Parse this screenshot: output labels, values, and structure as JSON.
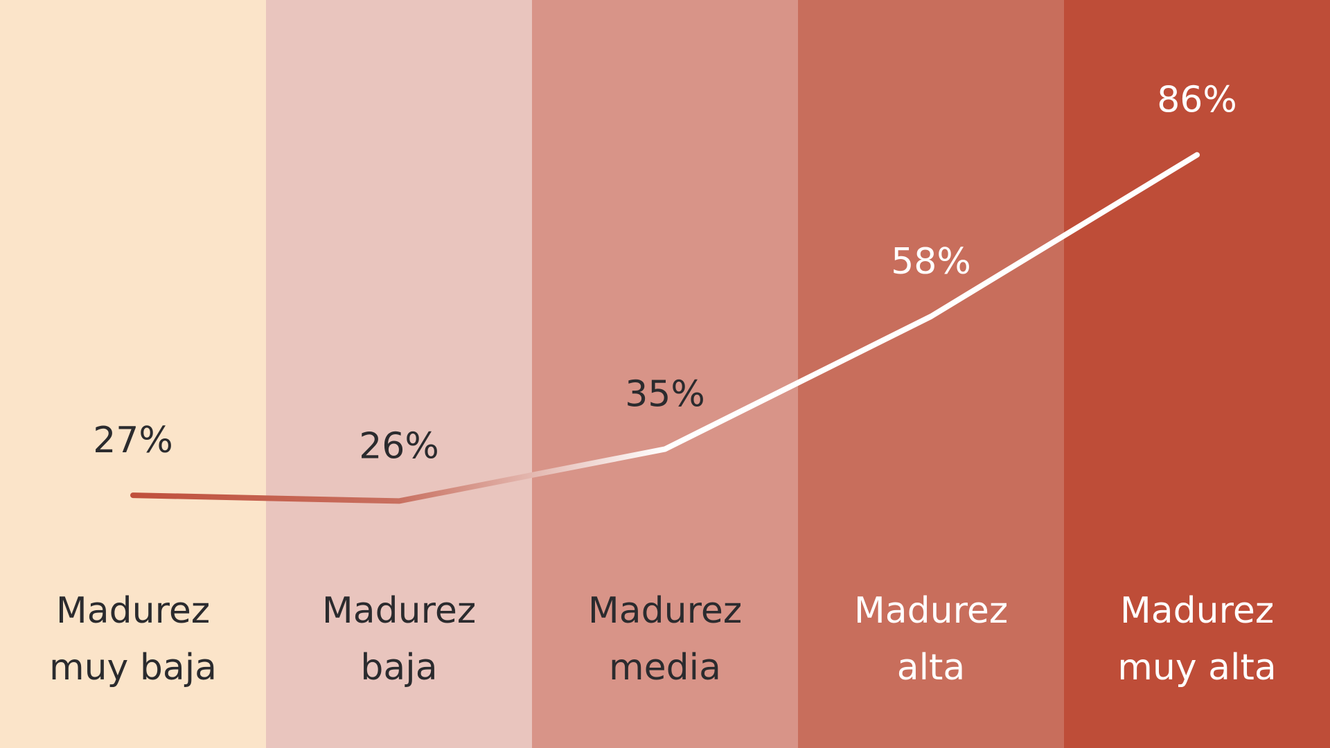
{
  "chart_data": {
    "type": "line",
    "categories": [
      "Madurez muy baja",
      "Madurez baja",
      "Madurez media",
      "Madurez alta",
      "Madurez muy alta"
    ],
    "values": [
      27,
      26,
      35,
      58,
      86
    ],
    "value_labels": [
      "27%",
      "26%",
      "35%",
      "58%",
      "86%"
    ],
    "ylim": [
      0,
      100
    ],
    "band_colors": [
      "#fbe4c9",
      "#e9c5be",
      "#d89488",
      "#c86e5c",
      "#be4d38"
    ],
    "label_colors": [
      "#2b2b2e",
      "#2b2b2e",
      "#2b2b2e",
      "#ffffff",
      "#ffffff"
    ]
  }
}
